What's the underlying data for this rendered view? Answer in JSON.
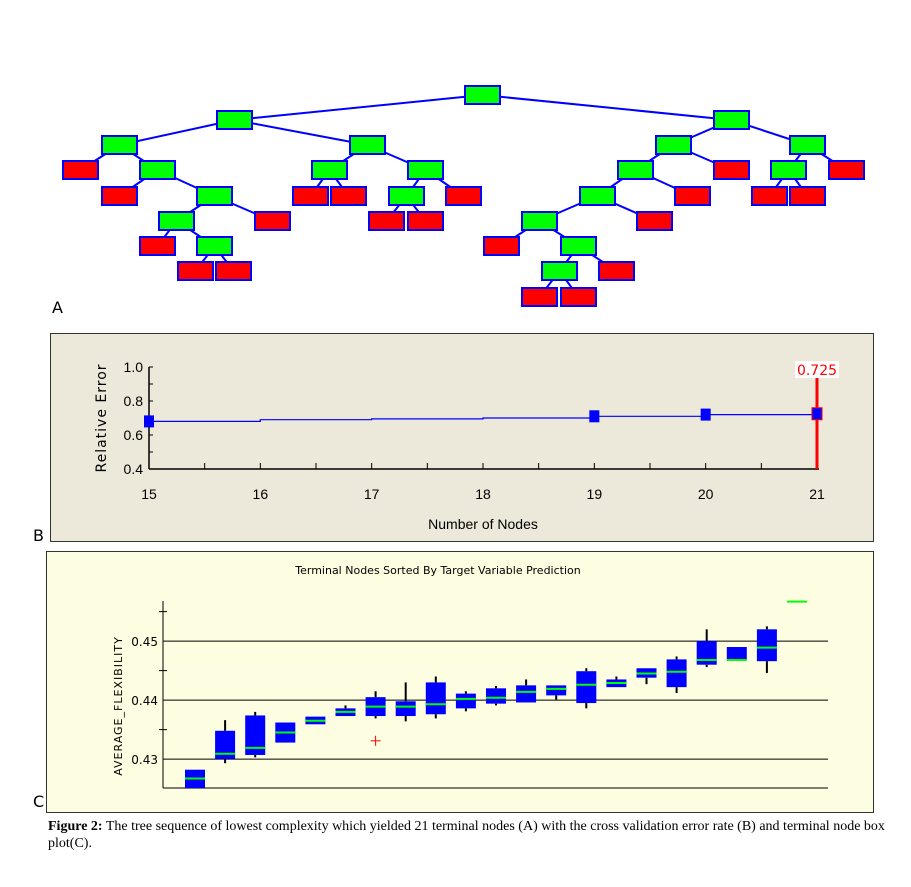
{
  "panels": {
    "a": "A",
    "b": "B",
    "c": "C"
  },
  "tree": {
    "colors": {
      "split": "#00ff00",
      "terminal": "#ff0000",
      "edge": "#0000ff"
    },
    "terminal_count": 21,
    "nodes": [
      {
        "id": "root",
        "type": "split",
        "parent": null
      },
      {
        "id": "L1",
        "type": "split",
        "parent": "root"
      },
      {
        "id": "R1",
        "type": "split",
        "parent": "root"
      },
      {
        "id": "L2a",
        "type": "split",
        "parent": "L1"
      },
      {
        "id": "L2b",
        "type": "split",
        "parent": "L1"
      },
      {
        "id": "t1",
        "type": "terminal",
        "parent": "L2a"
      },
      {
        "id": "L3a",
        "type": "split",
        "parent": "L2a"
      },
      {
        "id": "t2",
        "type": "terminal",
        "parent": "L3a"
      },
      {
        "id": "L4a",
        "type": "split",
        "parent": "L3a"
      },
      {
        "id": "L5a",
        "type": "split",
        "parent": "L4a"
      },
      {
        "id": "t3",
        "type": "terminal",
        "parent": "L4a"
      },
      {
        "id": "t4",
        "type": "terminal",
        "parent": "L5a"
      },
      {
        "id": "L6a",
        "type": "split",
        "parent": "L5a"
      },
      {
        "id": "t5",
        "type": "terminal",
        "parent": "L6a"
      },
      {
        "id": "t6",
        "type": "terminal",
        "parent": "L6a"
      },
      {
        "id": "L3b",
        "type": "split",
        "parent": "L2b"
      },
      {
        "id": "L3c",
        "type": "split",
        "parent": "L2b"
      },
      {
        "id": "t7",
        "type": "terminal",
        "parent": "L3b"
      },
      {
        "id": "t8",
        "type": "terminal",
        "parent": "L3b"
      },
      {
        "id": "L4c",
        "type": "split",
        "parent": "L3c"
      },
      {
        "id": "t9",
        "type": "terminal",
        "parent": "L3c"
      },
      {
        "id": "t10",
        "type": "terminal",
        "parent": "L4c"
      },
      {
        "id": "t11",
        "type": "terminal",
        "parent": "L4c"
      },
      {
        "id": "R2a",
        "type": "split",
        "parent": "R1"
      },
      {
        "id": "R2b",
        "type": "split",
        "parent": "R1"
      },
      {
        "id": "R3a",
        "type": "split",
        "parent": "R2a"
      },
      {
        "id": "t12",
        "type": "terminal",
        "parent": "R2a"
      },
      {
        "id": "R4a",
        "type": "split",
        "parent": "R3a"
      },
      {
        "id": "t13",
        "type": "terminal",
        "parent": "R3a"
      },
      {
        "id": "R5a",
        "type": "split",
        "parent": "R4a"
      },
      {
        "id": "t14",
        "type": "terminal",
        "parent": "R4a"
      },
      {
        "id": "t15",
        "type": "terminal",
        "parent": "R5a"
      },
      {
        "id": "R6a",
        "type": "split",
        "parent": "R5a"
      },
      {
        "id": "R7a",
        "type": "split",
        "parent": "R6a"
      },
      {
        "id": "t16",
        "type": "terminal",
        "parent": "R6a"
      },
      {
        "id": "t17",
        "type": "terminal",
        "parent": "R7a"
      },
      {
        "id": "t18",
        "type": "terminal",
        "parent": "R7a"
      },
      {
        "id": "R3b",
        "type": "split",
        "parent": "R2b"
      },
      {
        "id": "t19",
        "type": "terminal",
        "parent": "R2b"
      },
      {
        "id": "t20",
        "type": "terminal",
        "parent": "R3b"
      },
      {
        "id": "t21",
        "type": "terminal",
        "parent": "R3b"
      }
    ]
  },
  "chart_data": [
    {
      "type": "line",
      "panel": "B",
      "title": "",
      "xlabel": "Number of Nodes",
      "ylabel": "Relative Error",
      "x": [
        15,
        16,
        17,
        18,
        19,
        20,
        21
      ],
      "xticks": [
        "15",
        "16",
        "17",
        "18",
        "19",
        "20",
        "21"
      ],
      "yticks": [
        "0.4",
        "0.6",
        "0.8",
        "1.0"
      ],
      "xlim": [
        15,
        21
      ],
      "ylim": [
        0.4,
        1.0
      ],
      "series": [
        {
          "values": [
            0.68,
            0.69,
            0.695,
            0.7,
            0.71,
            0.72,
            0.725
          ],
          "color": "#0000ff"
        }
      ],
      "markers_at": [
        15,
        19,
        20,
        21
      ],
      "selected": {
        "x": 21,
        "y": 0.725,
        "label": "0.725",
        "color": "#ff0000"
      },
      "grid": false,
      "background": "#ece8da"
    },
    {
      "type": "box",
      "panel": "C",
      "title": "Terminal Nodes Sorted By Target Variable Prediction",
      "xlabel": "",
      "ylabel": "AVERAGE_FLEXIBILITY",
      "yticks": [
        "0.43",
        "0.44",
        "0.45"
      ],
      "ylim": [
        0.4251,
        0.4568
      ],
      "grid": true,
      "colors": {
        "box": "#0000ff",
        "median": "#00ff00",
        "whisker": "#000000",
        "outlier": "#ff0000"
      },
      "background": "#fdfde1",
      "boxes": [
        {
          "q1": 0.4251,
          "median": 0.4267,
          "q3": 0.4282,
          "low": null,
          "high": null
        },
        {
          "q1": 0.43,
          "median": 0.4309,
          "q3": 0.4348,
          "low": 0.4293,
          "high": 0.4366
        },
        {
          "q1": 0.4307,
          "median": 0.4319,
          "q3": 0.4374,
          "low": 0.4303,
          "high": 0.438
        },
        {
          "q1": 0.4328,
          "median": 0.4345,
          "q3": 0.4362,
          "low": null,
          "high": null
        },
        {
          "q1": 0.4359,
          "median": 0.4365,
          "q3": 0.4372,
          "low": null,
          "high": null
        },
        {
          "q1": 0.4373,
          "median": 0.438,
          "q3": 0.4386,
          "low": null,
          "high": 0.4391
        },
        {
          "q1": 0.4373,
          "median": 0.4389,
          "q3": 0.4405,
          "low": 0.4369,
          "high": 0.4415,
          "outliers": [
            0.4331
          ]
        },
        {
          "q1": 0.4373,
          "median": 0.4389,
          "q3": 0.4398,
          "low": 0.4364,
          "high": 0.443
        },
        {
          "q1": 0.4376,
          "median": 0.4393,
          "q3": 0.443,
          "low": 0.4369,
          "high": 0.444
        },
        {
          "q1": 0.4386,
          "median": 0.4402,
          "q3": 0.4411,
          "low": 0.4381,
          "high": 0.4415
        },
        {
          "q1": 0.4394,
          "median": 0.4404,
          "q3": 0.442,
          "low": 0.4391,
          "high": 0.4424
        },
        {
          "q1": 0.4396,
          "median": 0.4414,
          "q3": 0.4425,
          "low": null,
          "high": 0.4435
        },
        {
          "q1": 0.4408,
          "median": 0.4419,
          "q3": 0.4425,
          "low": 0.4401,
          "high": null
        },
        {
          "q1": 0.4395,
          "median": 0.4426,
          "q3": 0.4449,
          "low": 0.4386,
          "high": 0.4454
        },
        {
          "q1": 0.4422,
          "median": 0.4429,
          "q3": 0.4435,
          "low": null,
          "high": 0.444
        },
        {
          "q1": 0.4438,
          "median": 0.4445,
          "q3": 0.4454,
          "low": 0.4427,
          "high": null
        },
        {
          "q1": 0.4422,
          "median": 0.4448,
          "q3": 0.4469,
          "low": 0.4412,
          "high": 0.4474
        },
        {
          "q1": 0.446,
          "median": 0.4468,
          "q3": 0.45,
          "low": 0.4456,
          "high": 0.452
        },
        {
          "q1": 0.4468,
          "median": 0.4468,
          "q3": 0.449,
          "low": null,
          "high": null
        },
        {
          "q1": 0.4466,
          "median": 0.4489,
          "q3": 0.452,
          "low": 0.4446,
          "high": 0.4525
        },
        {
          "q1": null,
          "median": 0.4567,
          "q3": null,
          "low": null,
          "high": null
        }
      ]
    }
  ],
  "caption": {
    "label": "Figure 2:",
    "text": " The tree sequence of lowest complexity which yielded 21 terminal nodes (A) with the cross validation error rate (B) and terminal node box plot(C)."
  }
}
